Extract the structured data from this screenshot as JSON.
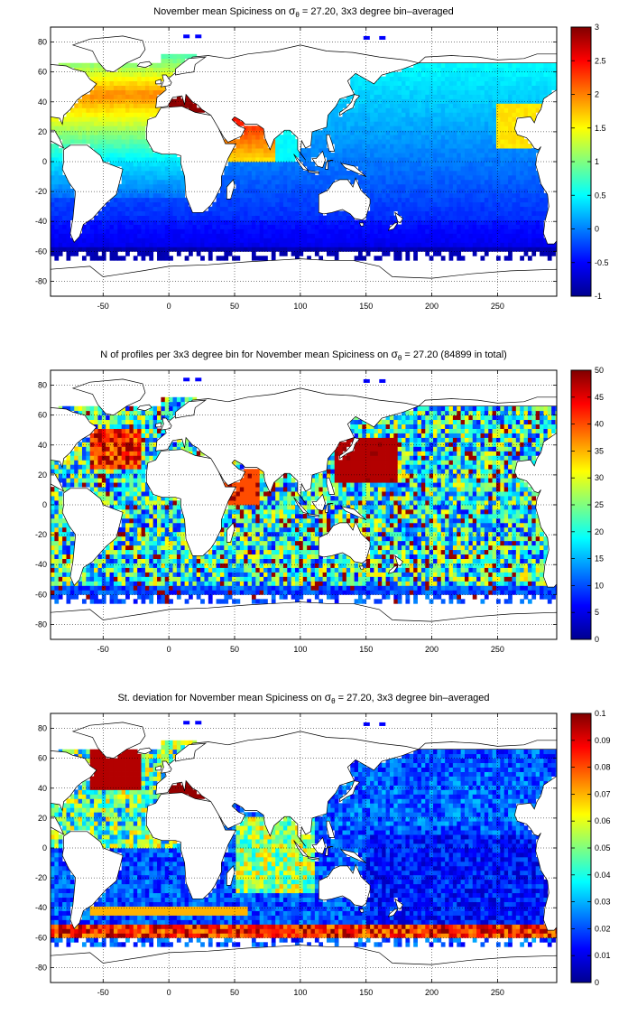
{
  "colors": {
    "jet": [
      "#00008f",
      "#0000ff",
      "#00ffff",
      "#ffff00",
      "#ff0000",
      "#800000"
    ],
    "land": "#ffffff",
    "coast": "#000000",
    "grid": "#000000"
  },
  "chart_data": [
    {
      "type": "heatmap",
      "title": "November mean Spiciness on σθ = 27.20, 3x3 degree bin–averaged",
      "title_parts": {
        "pre": "November mean Spiciness on ",
        "sym": "σ",
        "sub": "θ",
        "post": " = 27.20, 3x3 degree bin–averaged"
      },
      "x_ticks": [
        "-50",
        "0",
        "50",
        "100",
        "150",
        "200",
        "250"
      ],
      "y_ticks": [
        "80",
        "60",
        "40",
        "20",
        "0",
        "-20",
        "-40",
        "-60",
        "-80"
      ],
      "xlim": [
        -90,
        295
      ],
      "ylim": [
        -90,
        90
      ],
      "colorbar_ticks": [
        "3",
        "2.5",
        "2",
        "1.5",
        "1",
        "0.5",
        "0",
        "-0.5",
        "-1"
      ],
      "colorbar_range": [
        -1,
        3
      ],
      "field": "spiciness",
      "bin_size_deg": 3,
      "grid": true
    },
    {
      "type": "heatmap",
      "title": "N of profiles per 3x3 degree bin for November mean Spiciness on σθ = 27.20 (84899 in total)",
      "title_parts": {
        "pre": "N of profiles per 3x3 degree bin for November mean Spiciness on ",
        "sym": "σ",
        "sub": "θ",
        "post": " = 27.20 (84899 in total)"
      },
      "x_ticks": [
        "-50",
        "0",
        "50",
        "100",
        "150",
        "200",
        "250"
      ],
      "y_ticks": [
        "80",
        "60",
        "40",
        "20",
        "0",
        "-20",
        "-40",
        "-60",
        "-80"
      ],
      "xlim": [
        -90,
        295
      ],
      "ylim": [
        -90,
        90
      ],
      "colorbar_ticks": [
        "50",
        "45",
        "40",
        "35",
        "30",
        "25",
        "20",
        "15",
        "10",
        "5",
        "0"
      ],
      "colorbar_range": [
        0,
        50
      ],
      "field": "count",
      "bin_size_deg": 3,
      "grid": true
    },
    {
      "type": "heatmap",
      "title": "St. deviation for November mean Spiciness on σθ = 27.20, 3x3 degree bin–averaged",
      "title_parts": {
        "pre": "St. deviation for November mean Spiciness on ",
        "sym": "σ",
        "sub": "θ",
        "post": " = 27.20, 3x3 degree bin–averaged"
      },
      "x_ticks": [
        "-50",
        "0",
        "50",
        "100",
        "150",
        "200",
        "250"
      ],
      "y_ticks": [
        "80",
        "60",
        "40",
        "20",
        "0",
        "-20",
        "-40",
        "-60",
        "-80"
      ],
      "xlim": [
        -90,
        295
      ],
      "ylim": [
        -90,
        90
      ],
      "colorbar_ticks": [
        "0.1",
        "0.09",
        "0.08",
        "0.07",
        "0.06",
        "0.05",
        "0.04",
        "0.03",
        "0.02",
        "0.01",
        "0"
      ],
      "colorbar_range": [
        0,
        0.1
      ],
      "field": "stdev",
      "bin_size_deg": 3,
      "grid": true
    }
  ]
}
